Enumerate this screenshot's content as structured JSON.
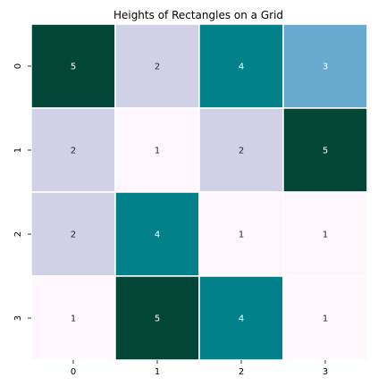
{
  "chart_data": {
    "type": "heatmap",
    "title": "Heights of Rectangles on a Grid",
    "x_ticks": [
      "0",
      "1",
      "2",
      "3"
    ],
    "y_ticks": [
      "0",
      "1",
      "2",
      "3"
    ],
    "values": [
      [
        5,
        2,
        4,
        3
      ],
      [
        2,
        1,
        2,
        5
      ],
      [
        2,
        4,
        1,
        1
      ],
      [
        1,
        5,
        4,
        1
      ]
    ],
    "value_colors": {
      "1": "#fff7fb",
      "2": "#d0d1e6",
      "3": "#67a9cf",
      "4": "#02818a",
      "5": "#014636"
    },
    "text_colors": {
      "1": "#262626",
      "2": "#262626",
      "3": "#ffffff",
      "4": "#ffffff",
      "5": "#ffffff"
    },
    "colorbar": false,
    "grid_line_color": "#ffffff"
  }
}
